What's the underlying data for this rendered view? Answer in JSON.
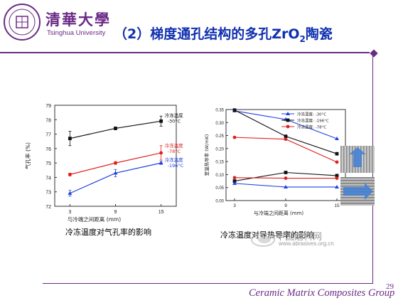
{
  "header": {
    "logo_name": "清華大學",
    "logo_sub": "Tsinghua University",
    "title_main": "（2）梯度通孔结构的多孔ZrO",
    "title_sub": "2",
    "title_tail": "陶瓷"
  },
  "footer": {
    "group_name": "Ceramic Matrix Composites Group",
    "page_number": "29"
  },
  "colors": {
    "brand_purple": "#6a2a86",
    "title_blue": "#1030b0",
    "black_series": "#111111",
    "red_series": "#e02020",
    "blue_series": "#2040e0"
  },
  "captions": {
    "left": "冷冻温度对气孔率的影响",
    "right": "冷冻温度对导热导率的影响"
  },
  "watermark": {
    "text": "中国磨料网",
    "url": "www.abrasives.org.cn"
  },
  "chart_data": [
    {
      "type": "line",
      "ylabel": "气孔率 (%)",
      "xlabel": "与冷端之间距离 (mm)",
      "x": [
        3,
        9,
        15
      ],
      "xlim": [
        1,
        17
      ],
      "ylim": [
        72,
        79
      ],
      "yticks": [
        72,
        73,
        74,
        75,
        76,
        77,
        78,
        79
      ],
      "series": [
        {
          "name": "冷冻温度 -30°C",
          "color": "#111111",
          "values": [
            76.7,
            77.4,
            77.9
          ],
          "errors": [
            0.5,
            0.1,
            0.35
          ]
        },
        {
          "name": "冷冻温度 -78°C",
          "color": "#e02020",
          "values": [
            74.2,
            75.0,
            75.7
          ],
          "errors": [
            0.1,
            0.1,
            0.5
          ]
        },
        {
          "name": "冷冻温度 -196°C",
          "color": "#2040e0",
          "values": [
            72.9,
            74.3,
            75.0
          ],
          "errors": [
            0.2,
            0.25,
            0.1
          ]
        }
      ],
      "annotations": [
        {
          "line1": "冷冻温度",
          "line2": "-30°C",
          "color": "#111111",
          "x": 15,
          "y": 78.0
        },
        {
          "line1": "冷冻温度",
          "line2": "-78°C",
          "color": "#e02020",
          "x": 15,
          "y": 75.9
        },
        {
          "line1": "冷冻温度",
          "line2": "-196°C",
          "color": "#2040e0",
          "x": 15,
          "y": 74.9
        }
      ]
    },
    {
      "type": "line",
      "ylabel": "室温热导率 (W/mK)",
      "xlabel": "与冷端之间距离 (mm)",
      "x": [
        3,
        9,
        15
      ],
      "xlim": [
        2,
        16
      ],
      "ylim": [
        0,
        0.35
      ],
      "yticks": [
        0.0,
        0.05,
        0.1,
        0.15,
        0.2,
        0.25,
        0.3,
        0.35
      ],
      "legend_position": "top-right",
      "series": [
        {
          "name": "冷冻温度: -30°C",
          "color": "#2040e0",
          "values": [
            0.345,
            0.312,
            0.238
          ],
          "marker": "triangle"
        },
        {
          "name": "冷冻温度: -196°C",
          "color": "#111111",
          "values": [
            0.348,
            0.247,
            0.18
          ],
          "marker": "square"
        },
        {
          "name": "冷冻温度: -78°C",
          "color": "#e02020",
          "values": [
            0.243,
            0.236,
            0.148
          ],
          "marker": "circle"
        }
      ],
      "series_lower": [
        {
          "color": "#111111",
          "values": [
            0.075,
            0.108,
            0.096
          ],
          "marker": "square"
        },
        {
          "color": "#e02020",
          "values": [
            0.088,
            0.086,
            0.086
          ],
          "marker": "circle"
        },
        {
          "color": "#2040e0",
          "values": [
            0.066,
            0.052,
            0.052
          ],
          "marker": "triangle"
        }
      ]
    }
  ]
}
